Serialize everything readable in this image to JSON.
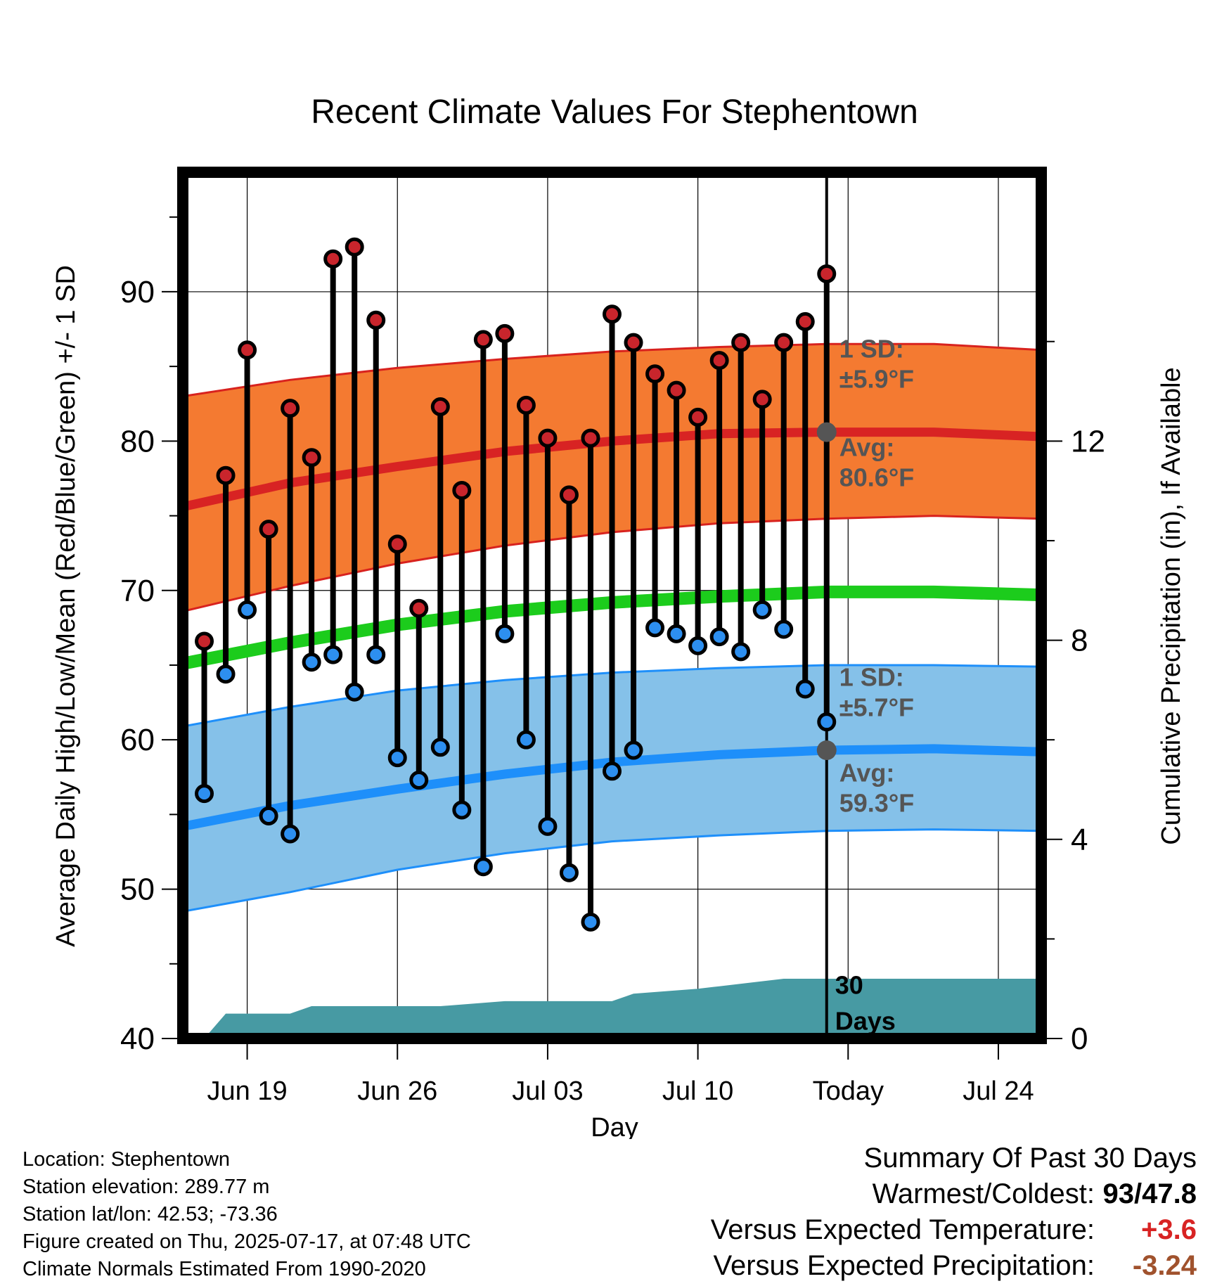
{
  "chart_data": {
    "type": "line",
    "title": "Recent Climate Values For Stephentown",
    "xlabel": "Day",
    "ylabel": "Average Daily High/Low/Mean (Red/Blue/Green) +/- 1 SD",
    "y2label": "Cumulative Precipitation (in), If Available",
    "ylim": [
      40,
      98
    ],
    "y2lim": [
      0,
      17.4
    ],
    "yticks": [
      "40",
      "50",
      "60",
      "70",
      "80",
      "90"
    ],
    "y2ticks": [
      "0",
      "4",
      "8",
      "12"
    ],
    "xtick_labels": [
      "Jun 19",
      "Jun 26",
      "Jul 03",
      "Jul 10",
      "Today",
      "Jul 24"
    ],
    "x_start": "2025-06-16",
    "x_end": "2025-07-26",
    "grid": true,
    "daily": {
      "dates": [
        "2025-06-17",
        "2025-06-18",
        "2025-06-19",
        "2025-06-20",
        "2025-06-21",
        "2025-06-22",
        "2025-06-23",
        "2025-06-24",
        "2025-06-25",
        "2025-06-26",
        "2025-06-27",
        "2025-06-28",
        "2025-06-29",
        "2025-06-30",
        "2025-07-01",
        "2025-07-02",
        "2025-07-03",
        "2025-07-04",
        "2025-07-05",
        "2025-07-06",
        "2025-07-07",
        "2025-07-08",
        "2025-07-09",
        "2025-07-10",
        "2025-07-11",
        "2025-07-12",
        "2025-07-13",
        "2025-07-14",
        "2025-07-15",
        "2025-07-16"
      ],
      "high": [
        66.6,
        77.7,
        86.1,
        74.1,
        82.2,
        78.9,
        92.2,
        93.0,
        88.1,
        73.1,
        68.8,
        82.3,
        76.7,
        86.8,
        87.2,
        82.4,
        80.2,
        76.4,
        80.2,
        88.5,
        86.6,
        84.5,
        83.4,
        81.6,
        85.4,
        86.6,
        82.8,
        86.6,
        88.0,
        91.2
      ],
      "low": [
        56.4,
        64.4,
        68.7,
        54.9,
        53.7,
        65.2,
        65.7,
        63.2,
        65.7,
        58.8,
        57.3,
        59.5,
        55.3,
        51.5,
        67.1,
        60.0,
        54.2,
        51.1,
        47.8,
        57.9,
        59.3,
        67.5,
        67.1,
        66.3,
        66.9,
        65.9,
        68.7,
        67.4,
        63.4,
        61.2
      ]
    },
    "normals": {
      "dates": [
        "2025-06-16",
        "2025-06-21",
        "2025-06-26",
        "2025-07-01",
        "2025-07-06",
        "2025-07-11",
        "2025-07-16",
        "2025-07-21",
        "2025-07-26"
      ],
      "avg_high": [
        75.6,
        77.2,
        78.3,
        79.3,
        80.0,
        80.5,
        80.6,
        80.6,
        80.3
      ],
      "avg_high_upper": [
        83.0,
        84.1,
        84.9,
        85.5,
        86.0,
        86.3,
        86.5,
        86.5,
        86.1
      ],
      "avg_high_lower": [
        68.6,
        70.3,
        71.8,
        73.0,
        73.9,
        74.5,
        74.8,
        75.0,
        74.8
      ],
      "avg_mean": [
        65.1,
        66.5,
        67.7,
        68.6,
        69.2,
        69.6,
        69.9,
        69.9,
        69.7
      ],
      "avg_low": [
        54.2,
        55.6,
        56.7,
        57.7,
        58.5,
        59.0,
        59.3,
        59.4,
        59.2
      ],
      "avg_low_upper": [
        60.9,
        62.2,
        63.3,
        64.0,
        64.5,
        64.8,
        65.0,
        65.0,
        64.9
      ],
      "avg_low_lower": [
        48.5,
        49.8,
        51.3,
        52.4,
        53.2,
        53.6,
        53.9,
        54.0,
        53.9
      ]
    },
    "precip": {
      "dates": [
        "2025-06-16",
        "2025-06-17",
        "2025-06-18",
        "2025-06-21",
        "2025-06-22",
        "2025-06-28",
        "2025-07-01",
        "2025-07-06",
        "2025-07-07",
        "2025-07-10",
        "2025-07-11",
        "2025-07-14",
        "2025-07-16",
        "2025-07-26"
      ],
      "cumulative": [
        0.0,
        0.0,
        0.5,
        0.5,
        0.65,
        0.65,
        0.75,
        0.75,
        0.9,
        1.0,
        1.05,
        1.2,
        1.2,
        1.2
      ]
    },
    "today": "2025-07-16",
    "annotations": {
      "high_sd": [
        "1 SD:",
        "±5.9",
        "°F"
      ],
      "high_avg": [
        "Avg:",
        "80.6",
        "°F"
      ],
      "low_sd": [
        "1 SD:",
        "±5.7",
        "°F"
      ],
      "low_avg": [
        "Avg:",
        "59.3",
        "°F"
      ],
      "today_avg_high": 80.6,
      "today_avg_low": 59.3,
      "days": [
        "30",
        "Days"
      ]
    },
    "colors": {
      "high_band": "#f47a31",
      "high_band_edge": "#d8221e",
      "high_avg": "#d82323",
      "mean": "#1ccc1c",
      "low_band": "#85c1e9",
      "low_band_edge": "#1e8ffa",
      "low_avg": "#1e8ffa",
      "high_dot": "#c9252c",
      "low_dot": "#2d8ff0",
      "precip": "#479aa3",
      "annotation": "#555555"
    }
  },
  "footer": {
    "location": "Location: Stephentown",
    "elevation": "Station elevation: 289.77 m",
    "latlon": "Station lat/lon: 42.53; -73.36",
    "created": "Figure created on Thu, 2025-07-17, at 07:48 UTC",
    "normals": "Climate Normals Estimated From 1990-2020"
  },
  "summary": {
    "heading": "Summary Of Past 30 Days",
    "warmest_coldest_label": "Warmest/Coldest:",
    "warmest_coldest_value": "93/47.8",
    "temp_label": "Versus Expected Temperature:",
    "temp_value": "+3.6",
    "temp_color": "#d82323",
    "precip_label": "Versus Expected Precipitation:",
    "precip_value": "-3.24",
    "precip_color": "#a0522d"
  }
}
